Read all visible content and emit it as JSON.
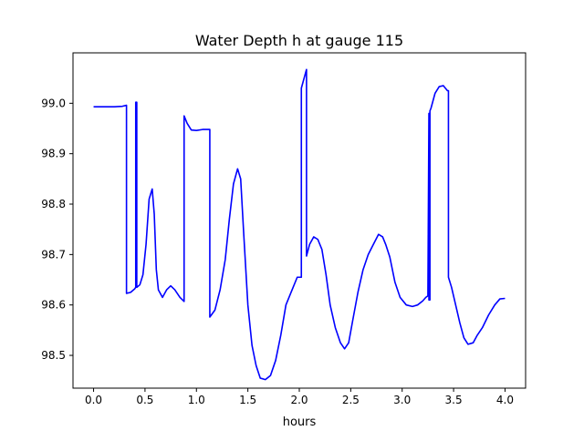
{
  "chart_data": {
    "type": "line",
    "title": "Water Depth h at gauge 115",
    "xlabel": "hours",
    "ylabel": "",
    "xlim": [
      -0.2,
      4.2
    ],
    "ylim": [
      98.435,
      99.1
    ],
    "x_ticks": [
      0.0,
      0.5,
      1.0,
      1.5,
      2.0,
      2.5,
      3.0,
      3.5,
      4.0
    ],
    "x_tick_labels": [
      "0.0",
      "0.5",
      "1.0",
      "1.5",
      "2.0",
      "2.5",
      "3.0",
      "3.5",
      "4.0"
    ],
    "y_ticks": [
      98.5,
      98.6,
      98.7,
      98.8,
      98.9,
      99.0
    ],
    "y_tick_labels": [
      "98.5",
      "98.6",
      "98.7",
      "98.8",
      "98.9",
      "99.0"
    ],
    "grid": false,
    "colors": {
      "line": "#0000ff"
    },
    "series": [
      {
        "x": [
          0.0,
          0.1,
          0.2,
          0.28,
          0.32,
          0.32,
          0.36,
          0.4,
          0.41,
          0.41,
          0.42,
          0.42,
          0.45,
          0.48,
          0.51,
          0.54,
          0.57,
          0.59,
          0.61,
          0.63,
          0.67,
          0.71,
          0.75,
          0.79,
          0.84,
          0.88,
          0.88,
          0.91,
          0.95,
          1.0,
          1.06,
          1.12,
          1.13,
          1.13,
          1.18,
          1.23,
          1.28,
          1.32,
          1.36,
          1.4,
          1.43,
          1.46,
          1.5,
          1.54,
          1.58,
          1.62,
          1.67,
          1.72,
          1.77,
          1.82,
          1.87,
          1.93,
          1.98,
          2.02,
          2.02,
          2.07,
          2.07,
          2.1,
          2.14,
          2.18,
          2.22,
          2.26,
          2.3,
          2.35,
          2.4,
          2.44,
          2.48,
          2.52,
          2.57,
          2.62,
          2.67,
          2.72,
          2.77,
          2.81,
          2.84,
          2.88,
          2.93,
          2.98,
          3.04,
          3.1,
          3.15,
          3.2,
          3.23,
          3.25,
          3.26,
          3.26,
          3.27,
          3.27,
          3.28,
          3.32,
          3.36,
          3.4,
          3.42,
          3.44,
          3.45,
          3.45,
          3.48,
          3.52,
          3.56,
          3.6,
          3.64,
          3.69,
          3.73,
          3.78,
          3.84,
          3.9,
          3.95,
          4.0
        ],
        "y": [
          98.993,
          98.993,
          98.993,
          98.994,
          98.996,
          98.623,
          98.625,
          98.632,
          98.635,
          99.002,
          99.002,
          98.635,
          98.64,
          98.66,
          98.72,
          98.81,
          98.83,
          98.78,
          98.67,
          98.63,
          98.615,
          98.63,
          98.638,
          98.63,
          98.615,
          98.607,
          98.975,
          98.96,
          98.947,
          98.946,
          98.948,
          98.948,
          98.948,
          98.576,
          98.59,
          98.63,
          98.69,
          98.77,
          98.84,
          98.87,
          98.85,
          98.74,
          98.6,
          98.52,
          98.48,
          98.455,
          98.452,
          98.46,
          98.49,
          98.54,
          98.6,
          98.63,
          98.655,
          98.655,
          99.03,
          99.067,
          98.697,
          98.72,
          98.735,
          98.73,
          98.71,
          98.66,
          98.6,
          98.555,
          98.525,
          98.513,
          98.525,
          98.57,
          98.625,
          98.67,
          98.7,
          98.72,
          98.74,
          98.735,
          98.72,
          98.695,
          98.645,
          98.615,
          98.6,
          98.597,
          98.6,
          98.608,
          98.615,
          98.618,
          98.98,
          98.61,
          98.61,
          98.985,
          98.99,
          99.02,
          99.033,
          99.035,
          99.03,
          99.025,
          99.025,
          98.655,
          98.635,
          98.6,
          98.565,
          98.535,
          98.522,
          98.525,
          98.54,
          98.555,
          98.58,
          98.6,
          98.612,
          98.613
        ]
      }
    ]
  }
}
